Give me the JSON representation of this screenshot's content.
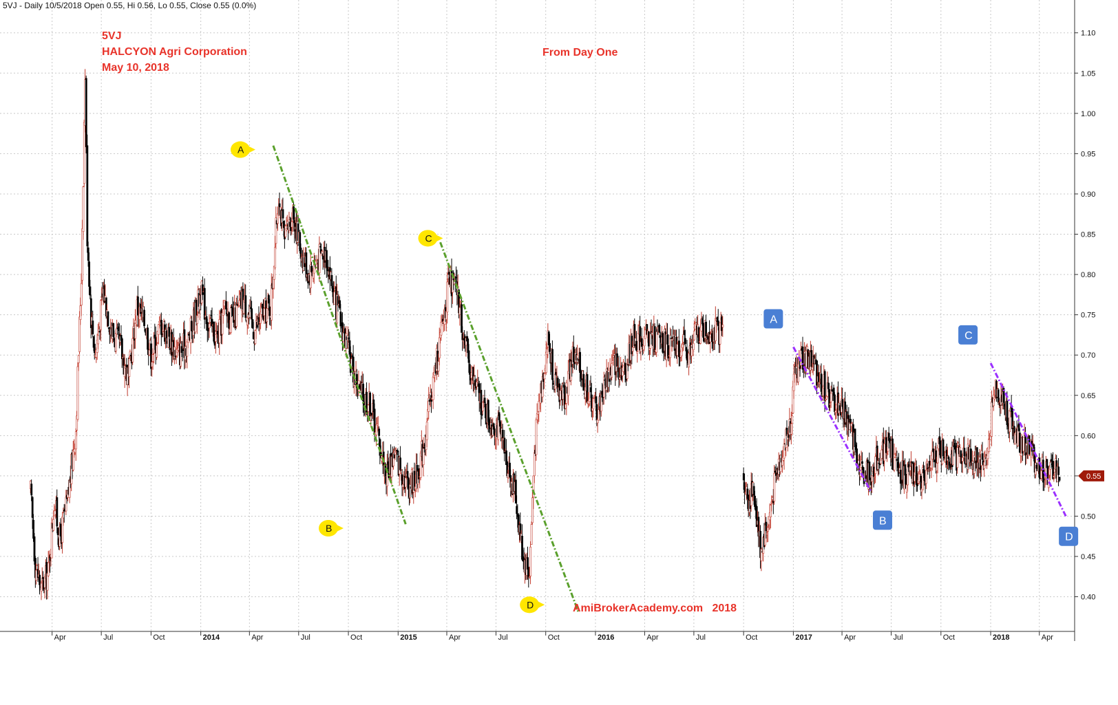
{
  "header": {
    "text": "5VJ - Daily 10/5/2018 Open 0.55, Hi 0.56, Lo 0.55, Close 0.55 (0.0%)"
  },
  "annotations": {
    "ticker": "5VJ",
    "company": "HALCYON Agri Corporation",
    "date": "May 10, 2018",
    "subtitle": "From Day One",
    "watermark": "AmiBrokerAcademy.com   2018"
  },
  "price_tag": "0.55",
  "colors": {
    "up": "#c0392b",
    "down": "#000000",
    "green_trend": "#5aa02c",
    "purple_trend": "#9b30ff",
    "annotation": "#e8332a",
    "yellow_marker": "#ffe600",
    "blue_marker": "#4a7fd4",
    "price_tag": "#a01a0a"
  },
  "chart_data": {
    "type": "candlestick",
    "title": "",
    "ylim": [
      0.38,
      1.11
    ],
    "y_ticks": [
      "1.10",
      "1.05",
      "1.00",
      "0.95",
      "0.90",
      "0.85",
      "0.80",
      "0.75",
      "0.70",
      "0.65",
      "0.60",
      "0.55",
      "0.50",
      "0.45",
      "0.40"
    ],
    "x_ticks": [
      {
        "label": "Apr",
        "date": "2013-04-01",
        "year": false
      },
      {
        "label": "Jul",
        "date": "2013-07-01",
        "year": false
      },
      {
        "label": "Oct",
        "date": "2013-10-01",
        "year": false
      },
      {
        "label": "2014",
        "date": "2014-01-01",
        "year": true
      },
      {
        "label": "Apr",
        "date": "2014-04-01",
        "year": false
      },
      {
        "label": "Jul",
        "date": "2014-07-01",
        "year": false
      },
      {
        "label": "Oct",
        "date": "2014-10-01",
        "year": false
      },
      {
        "label": "2015",
        "date": "2015-01-01",
        "year": true
      },
      {
        "label": "Apr",
        "date": "2015-04-01",
        "year": false
      },
      {
        "label": "Jul",
        "date": "2015-07-01",
        "year": false
      },
      {
        "label": "Oct",
        "date": "2015-10-01",
        "year": false
      },
      {
        "label": "2016",
        "date": "2016-01-01",
        "year": true
      },
      {
        "label": "Apr",
        "date": "2016-04-01",
        "year": false
      },
      {
        "label": "Jul",
        "date": "2016-07-01",
        "year": false
      },
      {
        "label": "Oct",
        "date": "2016-10-01",
        "year": false
      },
      {
        "label": "2017",
        "date": "2017-01-01",
        "year": true
      },
      {
        "label": "Apr",
        "date": "2017-04-01",
        "year": false
      },
      {
        "label": "Jul",
        "date": "2017-07-01",
        "year": false
      },
      {
        "label": "Oct",
        "date": "2017-10-01",
        "year": false
      },
      {
        "label": "2018",
        "date": "2018-01-01",
        "year": true
      },
      {
        "label": "Apr",
        "date": "2018-04-01",
        "year": false
      }
    ],
    "price_path": [
      [
        "2013-02-20",
        0.53
      ],
      [
        "2013-03-01",
        0.44
      ],
      [
        "2013-03-12",
        0.41
      ],
      [
        "2013-03-25",
        0.43
      ],
      [
        "2013-04-05",
        0.52
      ],
      [
        "2013-04-15",
        0.47
      ],
      [
        "2013-04-30",
        0.52
      ],
      [
        "2013-05-15",
        0.61
      ],
      [
        "2013-05-25",
        0.8
      ],
      [
        "2013-06-01",
        1.05
      ],
      [
        "2013-06-05",
        0.85
      ],
      [
        "2013-06-12",
        0.75
      ],
      [
        "2013-06-20",
        0.7
      ],
      [
        "2013-07-05",
        0.78
      ],
      [
        "2013-07-20",
        0.73
      ],
      [
        "2013-08-05",
        0.71
      ],
      [
        "2013-08-20",
        0.67
      ],
      [
        "2013-09-05",
        0.76
      ],
      [
        "2013-09-20",
        0.74
      ],
      [
        "2013-10-01",
        0.7
      ],
      [
        "2013-10-20",
        0.74
      ],
      [
        "2013-11-05",
        0.72
      ],
      [
        "2013-11-20",
        0.7
      ],
      [
        "2013-12-10",
        0.72
      ],
      [
        "2014-01-01",
        0.78
      ],
      [
        "2014-01-15",
        0.74
      ],
      [
        "2014-02-01",
        0.72
      ],
      [
        "2014-02-15",
        0.76
      ],
      [
        "2014-03-01",
        0.74
      ],
      [
        "2014-03-20",
        0.77
      ],
      [
        "2014-04-10",
        0.73
      ],
      [
        "2014-04-25",
        0.75
      ],
      [
        "2014-05-10",
        0.76
      ],
      [
        "2014-05-25",
        0.9
      ],
      [
        "2014-06-05",
        0.84
      ],
      [
        "2014-06-20",
        0.88
      ],
      [
        "2014-07-05",
        0.83
      ],
      [
        "2014-07-20",
        0.8
      ],
      [
        "2014-08-05",
        0.82
      ],
      [
        "2014-08-20",
        0.83
      ],
      [
        "2014-09-05",
        0.77
      ],
      [
        "2014-09-25",
        0.72
      ],
      [
        "2014-10-10",
        0.68
      ],
      [
        "2014-10-25",
        0.65
      ],
      [
        "2014-11-10",
        0.64
      ],
      [
        "2014-11-25",
        0.6
      ],
      [
        "2014-12-10",
        0.55
      ],
      [
        "2014-12-25",
        0.58
      ],
      [
        "2015-01-05",
        0.56
      ],
      [
        "2015-01-20",
        0.54
      ],
      [
        "2015-02-05",
        0.55
      ],
      [
        "2015-02-20",
        0.6
      ],
      [
        "2015-03-05",
        0.66
      ],
      [
        "2015-03-20",
        0.72
      ],
      [
        "2015-04-05",
        0.79
      ],
      [
        "2015-04-20",
        0.78
      ],
      [
        "2015-05-05",
        0.71
      ],
      [
        "2015-05-20",
        0.67
      ],
      [
        "2015-06-05",
        0.64
      ],
      [
        "2015-06-20",
        0.62
      ],
      [
        "2015-07-05",
        0.61
      ],
      [
        "2015-07-20",
        0.57
      ],
      [
        "2015-08-05",
        0.53
      ],
      [
        "2015-08-20",
        0.45
      ],
      [
        "2015-09-01",
        0.43
      ],
      [
        "2015-09-10",
        0.58
      ],
      [
        "2015-09-20",
        0.65
      ],
      [
        "2015-10-05",
        0.72
      ],
      [
        "2015-10-20",
        0.66
      ],
      [
        "2015-11-05",
        0.65
      ],
      [
        "2015-11-20",
        0.7
      ],
      [
        "2015-12-05",
        0.68
      ],
      [
        "2015-12-20",
        0.65
      ],
      [
        "2016-01-05",
        0.63
      ],
      [
        "2016-01-20",
        0.67
      ],
      [
        "2016-02-05",
        0.69
      ],
      [
        "2016-02-25",
        0.68
      ],
      [
        "2016-03-10",
        0.72
      ],
      [
        "2016-03-25",
        0.72
      ],
      [
        "2016-04-10",
        0.72
      ],
      [
        "2016-05-01",
        0.72
      ],
      [
        "2016-05-20",
        0.71
      ],
      [
        "2016-06-10",
        0.71
      ],
      [
        "2016-06-25",
        0.7
      ],
      [
        "2016-07-05",
        0.73
      ],
      [
        "2016-07-25",
        0.73
      ],
      [
        "2016-08-10",
        0.73
      ],
      [
        "2016-08-25",
        0.73
      ]
    ],
    "price_path_2": [
      [
        "2016-10-01",
        0.55
      ],
      [
        "2016-10-10",
        0.52
      ],
      [
        "2016-10-20",
        0.53
      ],
      [
        "2016-11-01",
        0.46
      ],
      [
        "2016-11-15",
        0.49
      ],
      [
        "2016-11-25",
        0.53
      ],
      [
        "2016-12-10",
        0.58
      ],
      [
        "2016-12-25",
        0.61
      ],
      [
        "2017-01-05",
        0.68
      ],
      [
        "2017-01-20",
        0.7
      ],
      [
        "2017-02-05",
        0.69
      ],
      [
        "2017-02-20",
        0.67
      ],
      [
        "2017-03-05",
        0.65
      ],
      [
        "2017-03-20",
        0.64
      ],
      [
        "2017-04-05",
        0.63
      ],
      [
        "2017-04-20",
        0.6
      ],
      [
        "2017-05-05",
        0.56
      ],
      [
        "2017-05-20",
        0.55
      ],
      [
        "2017-06-05",
        0.57
      ],
      [
        "2017-06-25",
        0.59
      ],
      [
        "2017-07-10",
        0.56
      ],
      [
        "2017-07-25",
        0.55
      ],
      [
        "2017-08-10",
        0.55
      ],
      [
        "2017-08-25",
        0.55
      ],
      [
        "2017-09-10",
        0.56
      ],
      [
        "2017-09-25",
        0.58
      ],
      [
        "2017-10-10",
        0.58
      ],
      [
        "2017-10-25",
        0.57
      ],
      [
        "2017-11-10",
        0.58
      ],
      [
        "2017-11-25",
        0.57
      ],
      [
        "2017-12-10",
        0.57
      ],
      [
        "2017-12-25",
        0.57
      ],
      [
        "2018-01-01",
        0.62
      ],
      [
        "2018-01-10",
        0.66
      ],
      [
        "2018-01-25",
        0.64
      ],
      [
        "2018-02-05",
        0.62
      ],
      [
        "2018-02-15",
        0.6
      ],
      [
        "2018-03-01",
        0.59
      ],
      [
        "2018-03-15",
        0.58
      ],
      [
        "2018-04-01",
        0.56
      ],
      [
        "2018-04-15",
        0.55
      ],
      [
        "2018-05-01",
        0.56
      ],
      [
        "2018-05-10",
        0.55
      ]
    ],
    "trend_lines": [
      {
        "color": "green",
        "from": [
          "2014-05-15",
          0.96
        ],
        "to": [
          "2015-01-15",
          0.49
        ]
      },
      {
        "color": "green",
        "from": [
          "2015-03-20",
          0.84
        ],
        "to": [
          "2015-12-01",
          0.38
        ]
      },
      {
        "color": "purple",
        "from": [
          "2017-01-01",
          0.71
        ],
        "to": [
          "2017-05-25",
          0.53
        ]
      },
      {
        "color": "purple",
        "from": [
          "2018-01-01",
          0.69
        ],
        "to": [
          "2018-05-20",
          0.5
        ]
      }
    ],
    "markers": [
      {
        "label": "A",
        "style": "yellow",
        "date": "2014-03-15",
        "y": 0.955
      },
      {
        "label": "B",
        "style": "yellow",
        "date": "2014-08-25",
        "y": 0.485
      },
      {
        "label": "C",
        "style": "yellow",
        "date": "2015-02-25",
        "y": 0.845
      },
      {
        "label": "D",
        "style": "yellow",
        "date": "2015-09-01",
        "y": 0.39
      },
      {
        "label": "A",
        "style": "blue",
        "date": "2016-11-25",
        "y": 0.745
      },
      {
        "label": "B",
        "style": "blue",
        "date": "2017-06-15",
        "y": 0.495
      },
      {
        "label": "C",
        "style": "blue",
        "date": "2017-11-20",
        "y": 0.725
      },
      {
        "label": "D",
        "style": "blue",
        "date": "2018-05-25",
        "y": 0.475
      }
    ],
    "last_close": 0.55
  }
}
